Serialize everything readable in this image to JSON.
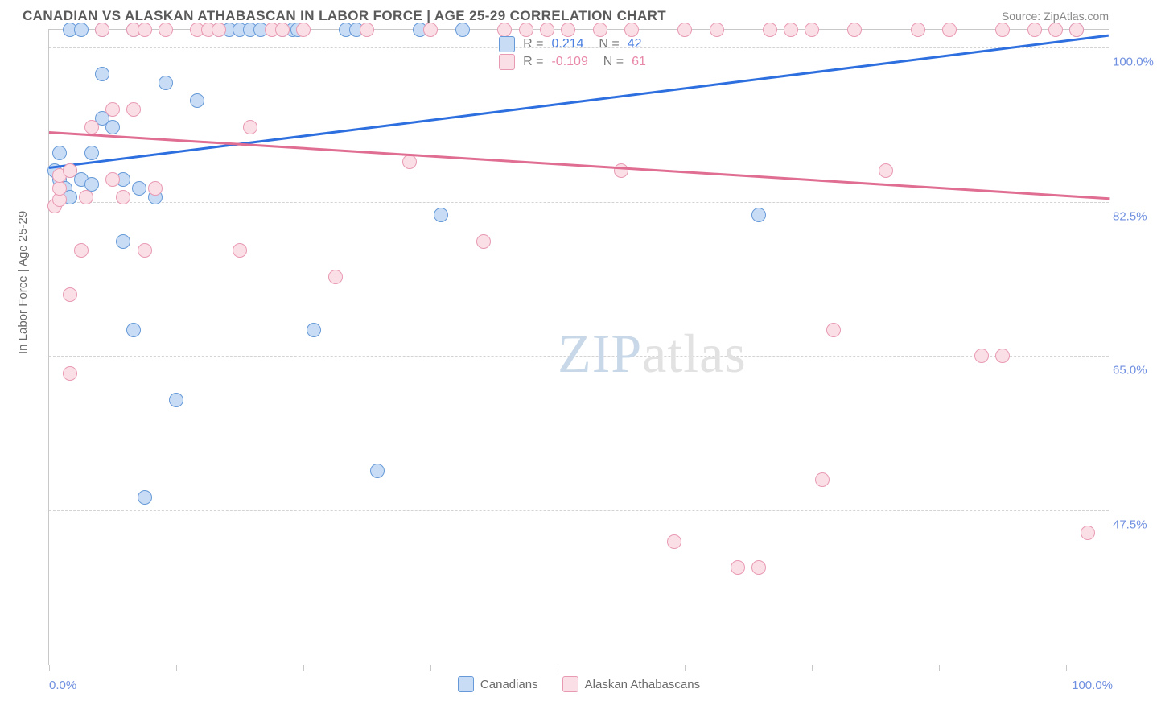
{
  "header": {
    "title": "CANADIAN VS ALASKAN ATHABASCAN IN LABOR FORCE | AGE 25-29 CORRELATION CHART",
    "source": "Source: ZipAtlas.com"
  },
  "watermark": {
    "zip": "ZIP",
    "atlas": "atlas"
  },
  "chart": {
    "type": "scatter",
    "ylabel": "In Labor Force | Age 25-29",
    "xlim": [
      0,
      100
    ],
    "ylim": [
      30,
      102
    ],
    "yticks": [
      {
        "v": 100.0,
        "label": "100.0%"
      },
      {
        "v": 82.5,
        "label": "82.5%"
      },
      {
        "v": 65.0,
        "label": "65.0%"
      },
      {
        "v": 47.5,
        "label": "47.5%"
      }
    ],
    "xticks_at": [
      0,
      12,
      24,
      36,
      48,
      60,
      72,
      84,
      96
    ],
    "xaxis_labels": {
      "min": "0.0%",
      "max": "100.0%"
    },
    "series": [
      {
        "key": "canadians",
        "label": "Canadians",
        "marker_fill": "#c8ddf5",
        "marker_stroke": "#6699d8",
        "trend_color": "#2e6fe0",
        "trend": {
          "x1": 0,
          "y1": 86.5,
          "x2": 100,
          "y2": 101.5
        },
        "stats": {
          "R": "0.214",
          "N": "42"
        },
        "points": [
          {
            "x": 0.5,
            "y": 86
          },
          {
            "x": 1,
            "y": 85
          },
          {
            "x": 1,
            "y": 88
          },
          {
            "x": 1.5,
            "y": 84
          },
          {
            "x": 2,
            "y": 86
          },
          {
            "x": 2,
            "y": 83
          },
          {
            "x": 2,
            "y": 102
          },
          {
            "x": 3,
            "y": 102
          },
          {
            "x": 3,
            "y": 85
          },
          {
            "x": 4,
            "y": 84.5
          },
          {
            "x": 4,
            "y": 88
          },
          {
            "x": 5,
            "y": 92
          },
          {
            "x": 5,
            "y": 97
          },
          {
            "x": 5,
            "y": 102
          },
          {
            "x": 6,
            "y": 91
          },
          {
            "x": 7,
            "y": 78
          },
          {
            "x": 7,
            "y": 85
          },
          {
            "x": 8,
            "y": 68
          },
          {
            "x": 8,
            "y": 102
          },
          {
            "x": 8.5,
            "y": 84
          },
          {
            "x": 9,
            "y": 49
          },
          {
            "x": 10,
            "y": 83
          },
          {
            "x": 11,
            "y": 96
          },
          {
            "x": 12,
            "y": 60
          },
          {
            "x": 14,
            "y": 94
          },
          {
            "x": 16,
            "y": 102
          },
          {
            "x": 17,
            "y": 102
          },
          {
            "x": 18,
            "y": 102
          },
          {
            "x": 19,
            "y": 102
          },
          {
            "x": 20,
            "y": 102
          },
          {
            "x": 22,
            "y": 102
          },
          {
            "x": 23,
            "y": 102
          },
          {
            "x": 23.5,
            "y": 102
          },
          {
            "x": 25,
            "y": 68
          },
          {
            "x": 28,
            "y": 102
          },
          {
            "x": 29,
            "y": 102
          },
          {
            "x": 31,
            "y": 52
          },
          {
            "x": 35,
            "y": 102
          },
          {
            "x": 37,
            "y": 81
          },
          {
            "x": 39,
            "y": 102
          },
          {
            "x": 67,
            "y": 81
          },
          {
            "x": 97,
            "y": 102
          }
        ]
      },
      {
        "key": "alaskan",
        "label": "Alaskan Athabascans",
        "marker_fill": "#fbdfe7",
        "marker_stroke": "#e89ab3",
        "trend_color": "#e06d92",
        "trend": {
          "x1": 0,
          "y1": 90.5,
          "x2": 100,
          "y2": 83
        },
        "stats": {
          "R": "-0.109",
          "N": "61"
        },
        "points": [
          {
            "x": 0.5,
            "y": 82
          },
          {
            "x": 1,
            "y": 82.7
          },
          {
            "x": 1,
            "y": 84
          },
          {
            "x": 1,
            "y": 85.5
          },
          {
            "x": 2,
            "y": 63
          },
          {
            "x": 2,
            "y": 72
          },
          {
            "x": 2,
            "y": 86
          },
          {
            "x": 3,
            "y": 77
          },
          {
            "x": 3.5,
            "y": 83
          },
          {
            "x": 4,
            "y": 91
          },
          {
            "x": 5,
            "y": 102
          },
          {
            "x": 6,
            "y": 85
          },
          {
            "x": 6,
            "y": 93
          },
          {
            "x": 7,
            "y": 83
          },
          {
            "x": 8,
            "y": 93
          },
          {
            "x": 8,
            "y": 102
          },
          {
            "x": 9,
            "y": 102
          },
          {
            "x": 9,
            "y": 77
          },
          {
            "x": 10,
            "y": 84
          },
          {
            "x": 11,
            "y": 102
          },
          {
            "x": 14,
            "y": 102
          },
          {
            "x": 15,
            "y": 102
          },
          {
            "x": 16,
            "y": 102
          },
          {
            "x": 18,
            "y": 77
          },
          {
            "x": 19,
            "y": 91
          },
          {
            "x": 21,
            "y": 102
          },
          {
            "x": 22,
            "y": 102
          },
          {
            "x": 24,
            "y": 102
          },
          {
            "x": 27,
            "y": 74
          },
          {
            "x": 30,
            "y": 102
          },
          {
            "x": 34,
            "y": 87
          },
          {
            "x": 36,
            "y": 102
          },
          {
            "x": 41,
            "y": 78
          },
          {
            "x": 43,
            "y": 102
          },
          {
            "x": 45,
            "y": 102
          },
          {
            "x": 47,
            "y": 102
          },
          {
            "x": 49,
            "y": 102
          },
          {
            "x": 52,
            "y": 102
          },
          {
            "x": 54,
            "y": 86
          },
          {
            "x": 55,
            "y": 102
          },
          {
            "x": 59,
            "y": 44
          },
          {
            "x": 60,
            "y": 102
          },
          {
            "x": 63,
            "y": 102
          },
          {
            "x": 65,
            "y": 41
          },
          {
            "x": 67,
            "y": 41
          },
          {
            "x": 68,
            "y": 102
          },
          {
            "x": 70,
            "y": 102
          },
          {
            "x": 72,
            "y": 102
          },
          {
            "x": 73,
            "y": 51
          },
          {
            "x": 74,
            "y": 68
          },
          {
            "x": 76,
            "y": 102
          },
          {
            "x": 79,
            "y": 86
          },
          {
            "x": 82,
            "y": 102
          },
          {
            "x": 85,
            "y": 102
          },
          {
            "x": 88,
            "y": 65
          },
          {
            "x": 90,
            "y": 65
          },
          {
            "x": 90,
            "y": 102
          },
          {
            "x": 93,
            "y": 102
          },
          {
            "x": 95,
            "y": 102
          },
          {
            "x": 98,
            "y": 45
          },
          {
            "x": 97,
            "y": 102
          }
        ]
      }
    ],
    "legend_swatch": {
      "blue_fill": "#c8ddf5",
      "blue_stroke": "#6699d8",
      "pink_fill": "#fbdfe7",
      "pink_stroke": "#e89ab3"
    }
  }
}
